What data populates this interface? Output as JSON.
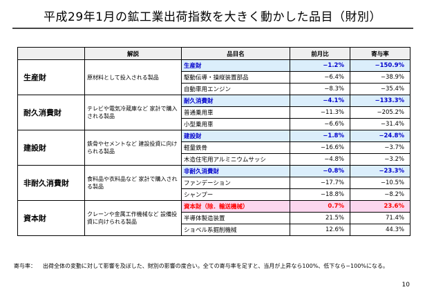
{
  "title": "平成29年1月の鉱工業出荷指数を大きく動かした品目（財別）",
  "table": {
    "headers": {
      "blank": "",
      "desc": "解説",
      "item": "品目名",
      "mom": "前月比",
      "contrib": "寄与率"
    },
    "groups": [
      {
        "category": "生産財",
        "description": "原材料として投入される製品",
        "rows": [
          {
            "item": "生産財",
            "mom": "−1.2%",
            "contrib": "−150.9%",
            "highlight": "blue"
          },
          {
            "item": "駆動伝導・操縦装置部品",
            "mom": "−6.4%",
            "contrib": "−38.9%"
          },
          {
            "item": "自動車用エンジン",
            "mom": "−8.3%",
            "contrib": "−35.4%"
          }
        ]
      },
      {
        "category": "耐久消費財",
        "description": "テレビや電気冷蔵庫など\n家計で購入される製品",
        "rows": [
          {
            "item": "耐久消費財",
            "mom": "−4.1%",
            "contrib": "−133.3%",
            "highlight": "blue"
          },
          {
            "item": "普通乗用車",
            "mom": "−11.3%",
            "contrib": "−205.2%"
          },
          {
            "item": "小型乗用車",
            "mom": "−6.6%",
            "contrib": "−31.4%"
          }
        ]
      },
      {
        "category": "建設財",
        "description": "鉄骨やセメントなど\n建設投資に向けられる製品",
        "rows": [
          {
            "item": "建設財",
            "mom": "−1.8%",
            "contrib": "−24.8%",
            "highlight": "blue"
          },
          {
            "item": "軽量鉄骨",
            "mom": "−16.6%",
            "contrib": "−3.7%"
          },
          {
            "item": "木造住宅用アルミニウムサッシ",
            "mom": "−4.8%",
            "contrib": "−3.2%"
          }
        ]
      },
      {
        "category": "非耐久消費財",
        "description": "食料品や衣料品など\n家計で購入される製品",
        "rows": [
          {
            "item": "非耐久消費財",
            "mom": "−0.8%",
            "contrib": "−23.3%",
            "highlight": "blue"
          },
          {
            "item": "ファンデーション",
            "mom": "−17.7%",
            "contrib": "−10.5%"
          },
          {
            "item": "シャンプー",
            "mom": "−18.8%",
            "contrib": "−8.2%"
          }
        ]
      },
      {
        "category": "資本財",
        "description": "クレーンや金属工作機械など\n設備投資に向けられる製品",
        "rows": [
          {
            "item": "資本財（除．輸送機械）",
            "mom": "0.7%",
            "contrib": "23.6%",
            "highlight": "pink"
          },
          {
            "item": "半導体製造装置",
            "mom": "21.5%",
            "contrib": "71.4%"
          },
          {
            "item": "ショベル系掘削機械",
            "mom": "12.6%",
            "contrib": "44.3%"
          }
        ]
      }
    ]
  },
  "note": {
    "label": "寄与率：",
    "text": "出荷全体の変動に対して影響を及ぼした、財別の影響の度合い。全ての寄与率を足すと、当月が上昇なら100%、低下なら−100%になる。"
  },
  "page_number": "10"
}
